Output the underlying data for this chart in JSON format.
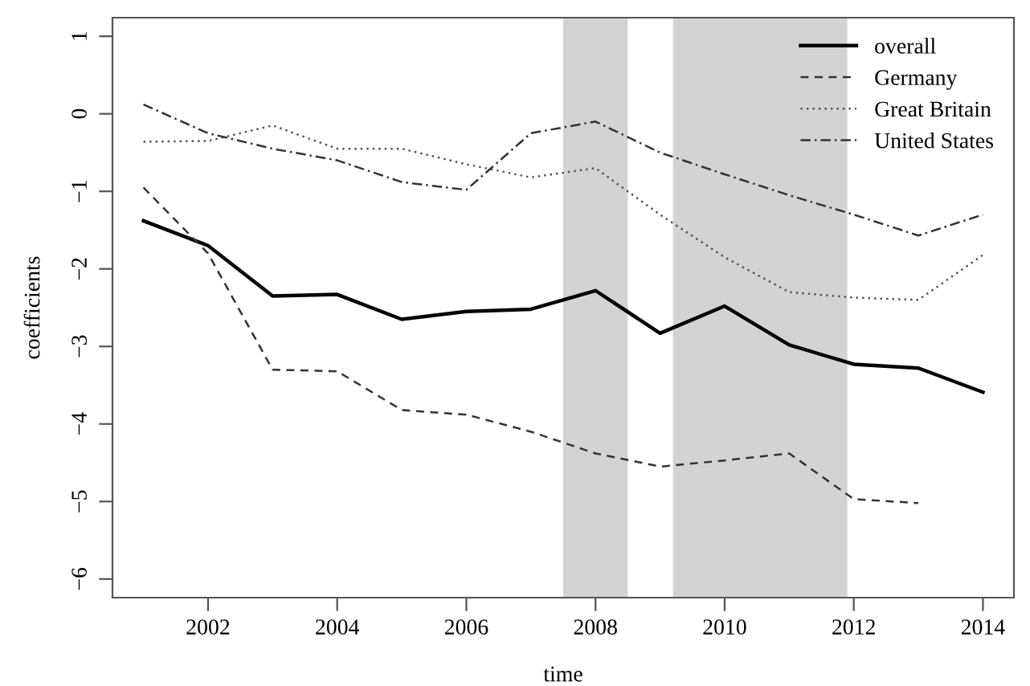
{
  "chart_data": {
    "type": "line",
    "xlabel": "time",
    "ylabel": "coefficients",
    "x": [
      2001,
      2002,
      2003,
      2004,
      2005,
      2006,
      2007,
      2008,
      2009,
      2010,
      2011,
      2012,
      2013,
      2014
    ],
    "series": [
      {
        "name": "overall",
        "color": "#000000",
        "line_style": "solid",
        "values": [
          -1.38,
          -1.7,
          -2.35,
          -2.33,
          -2.65,
          -2.55,
          -2.52,
          -2.28,
          -2.83,
          -2.48,
          -2.98,
          -3.23,
          -3.28,
          -3.59
        ]
      },
      {
        "name": "Germany",
        "color": "#333333",
        "line_style": "dashed",
        "values": [
          -0.95,
          -1.8,
          -3.3,
          -3.32,
          -3.82,
          -3.88,
          -4.1,
          -4.38,
          -4.55,
          -4.47,
          -4.38,
          -4.97,
          -5.02,
          null
        ]
      },
      {
        "name": "Great Britain",
        "color": "#555555",
        "line_style": "dotted",
        "values": [
          -0.36,
          -0.35,
          -0.15,
          -0.45,
          -0.45,
          -0.65,
          -0.82,
          -0.7,
          -1.3,
          -1.85,
          -2.3,
          -2.37,
          -2.4,
          -1.82
        ]
      },
      {
        "name": "United States",
        "color": "#333333",
        "line_style": "dashdot",
        "values": [
          0.12,
          -0.25,
          -0.45,
          -0.6,
          -0.88,
          -0.98,
          -0.25,
          -0.1,
          -0.5,
          -0.78,
          -1.05,
          -1.3,
          -1.57,
          -1.3
        ]
      }
    ],
    "bands": [
      {
        "axis": "x",
        "from": 2007.5,
        "to": 2008.5,
        "color": "#d3d3d3"
      },
      {
        "axis": "x",
        "from": 2009.2,
        "to": 2011.9,
        "color": "#d3d3d3"
      }
    ],
    "xlim": [
      2000.52,
      2014.48
    ],
    "ylim": [
      -6.24,
      1.24
    ],
    "xticks": [
      2002,
      2004,
      2006,
      2008,
      2010,
      2012,
      2014
    ],
    "yticks": [
      {
        "value": -6,
        "label": "−6"
      },
      {
        "value": -5,
        "label": "−5"
      },
      {
        "value": -4,
        "label": "−4"
      },
      {
        "value": -3,
        "label": "−3"
      },
      {
        "value": -2,
        "label": "−2"
      },
      {
        "value": -1,
        "label": "−1"
      },
      0,
      1
    ],
    "grid": false,
    "legend": "top right"
  }
}
